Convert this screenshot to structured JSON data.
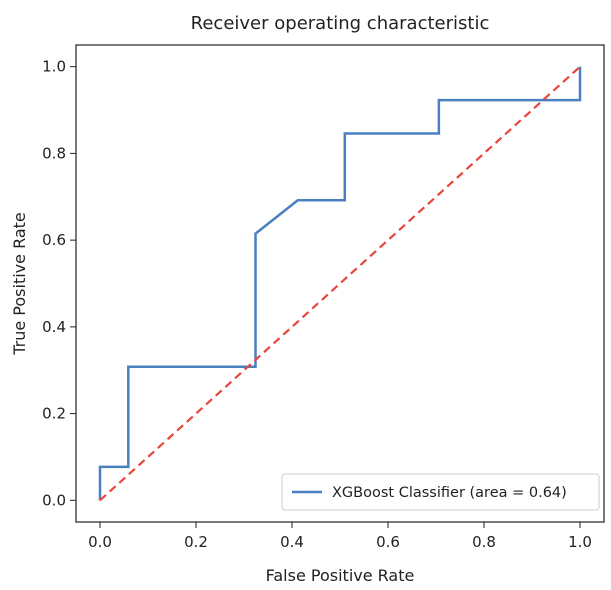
{
  "chart_data": {
    "type": "line",
    "title": "Receiver operating characteristic",
    "xlabel": "False Positive Rate",
    "ylabel": "True Positive Rate",
    "xlim": [
      -0.05,
      1.05
    ],
    "ylim": [
      -0.05,
      1.05
    ],
    "x_ticks": [
      0.0,
      0.2,
      0.4,
      0.6,
      0.8,
      1.0
    ],
    "y_ticks": [
      0.0,
      0.2,
      0.4,
      0.6,
      0.8,
      1.0
    ],
    "x_tick_labels": [
      "0.0",
      "0.2",
      "0.4",
      "0.6",
      "0.8",
      "1.0"
    ],
    "y_tick_labels": [
      "0.0",
      "0.2",
      "0.4",
      "0.6",
      "0.8",
      "1.0"
    ],
    "grid": false,
    "legend_position": "lower right",
    "series": [
      {
        "name": "XGBoost Classifier (area = 0.64)",
        "color": "#4a7fc0",
        "style": "solid",
        "x": [
          0.0,
          0.0,
          0.059,
          0.059,
          0.324,
          0.324,
          0.412,
          0.51,
          0.51,
          0.706,
          0.706,
          1.0,
          1.0
        ],
        "y": [
          0.0,
          0.077,
          0.077,
          0.308,
          0.308,
          0.615,
          0.692,
          0.692,
          0.846,
          0.846,
          0.923,
          0.923,
          1.0
        ]
      },
      {
        "color": "#e8453c",
        "style": "dashed",
        "x": [
          0.0,
          1.0
        ],
        "y": [
          0.0,
          1.0
        ]
      }
    ]
  }
}
